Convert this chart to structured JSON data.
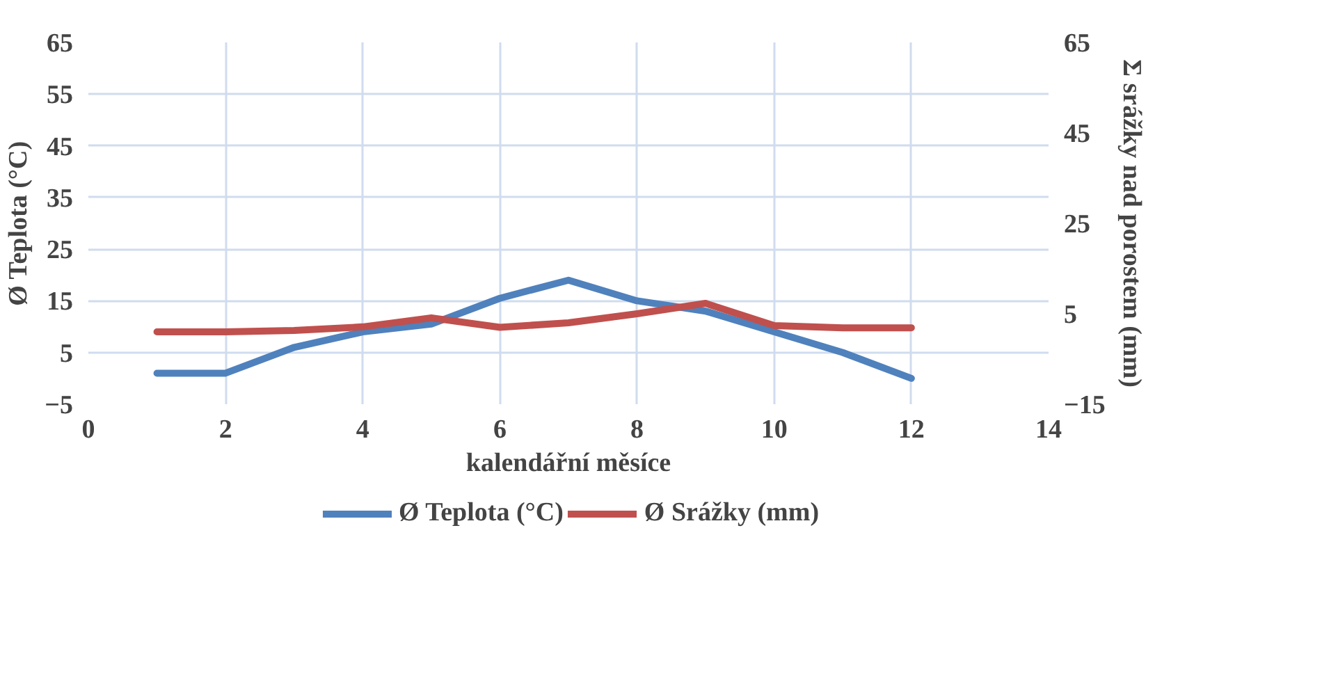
{
  "chart_data": {
    "type": "line",
    "xlabel": "kalendářní měsíce",
    "ylabel": "Ø Teplota (°C)",
    "y2label": "Σ srážky nad porostem (mm)",
    "x": [
      1,
      2,
      3,
      4,
      5,
      6,
      7,
      8,
      9,
      10,
      11,
      12
    ],
    "xlim": [
      0,
      14
    ],
    "xticks": [
      0,
      2,
      4,
      6,
      8,
      10,
      12,
      14
    ],
    "ylim": [
      -5,
      65
    ],
    "yticks": [
      -5,
      5,
      15,
      25,
      35,
      45,
      55,
      65
    ],
    "y2lim": [
      -15,
      65
    ],
    "y2ticks": [
      -15,
      5,
      25,
      45,
      65
    ],
    "grid": true,
    "legend": "bottom",
    "line_style": "solid",
    "marker": "none",
    "series": [
      {
        "name": "Ø Teplota (°C)",
        "color": "#4f81bd",
        "values": [
          1,
          1,
          6,
          9,
          10.5,
          15.5,
          19,
          15,
          13,
          9,
          5,
          0
        ]
      },
      {
        "name": "Ø Srážky (mm)",
        "color": "#c0504d",
        "axis": "y2",
        "values": [
          1,
          1,
          1.3,
          2.1,
          4.1,
          2,
          3,
          5,
          7.3,
          2.4,
          1.9,
          1.9
        ]
      }
    ]
  }
}
